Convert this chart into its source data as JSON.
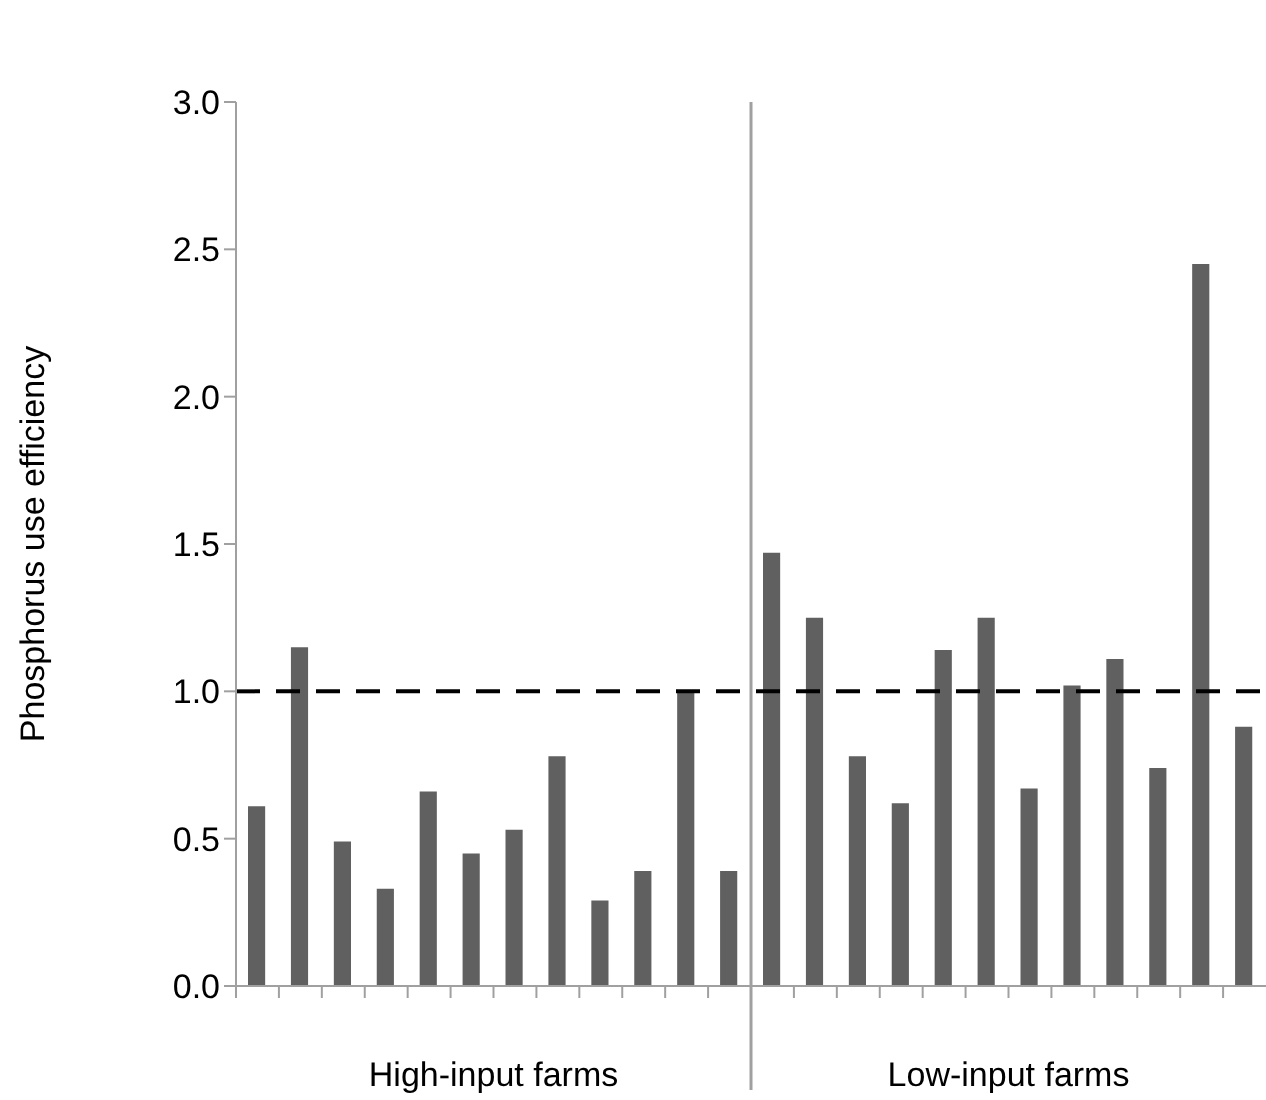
{
  "chart_data": {
    "type": "bar",
    "ylabel": "Phosphorus use efficiency",
    "categories": [
      null,
      null,
      null,
      null,
      null,
      null,
      null,
      null,
      null,
      null,
      null,
      null,
      null,
      null,
      null,
      null,
      null,
      null,
      null,
      null,
      null,
      null,
      null,
      null
    ],
    "values": [
      0.61,
      1.15,
      0.49,
      0.33,
      0.66,
      0.45,
      0.53,
      0.78,
      0.29,
      0.39,
      1.0,
      0.39,
      1.47,
      1.25,
      0.78,
      0.62,
      1.14,
      1.25,
      0.67,
      1.02,
      1.11,
      0.74,
      2.45,
      0.88
    ],
    "color": "#606060",
    "ylim": [
      0,
      3
    ],
    "yticks": [
      {
        "value": 0,
        "label": "0.0"
      },
      {
        "value": 0.5,
        "label": "0.5"
      },
      {
        "value": 1,
        "label": "1.0"
      },
      {
        "value": 1.5,
        "label": "1.5"
      },
      {
        "value": 2,
        "label": "2.0"
      },
      {
        "value": 2.5,
        "label": "2.5"
      },
      {
        "value": 3,
        "label": "3.0"
      }
    ],
    "ref_lines": [
      {
        "axis": "y",
        "value": 1,
        "color": "#000000",
        "line_style": "dashed"
      }
    ],
    "annotations": [
      "High-input farms",
      "Low-input farms"
    ]
  }
}
